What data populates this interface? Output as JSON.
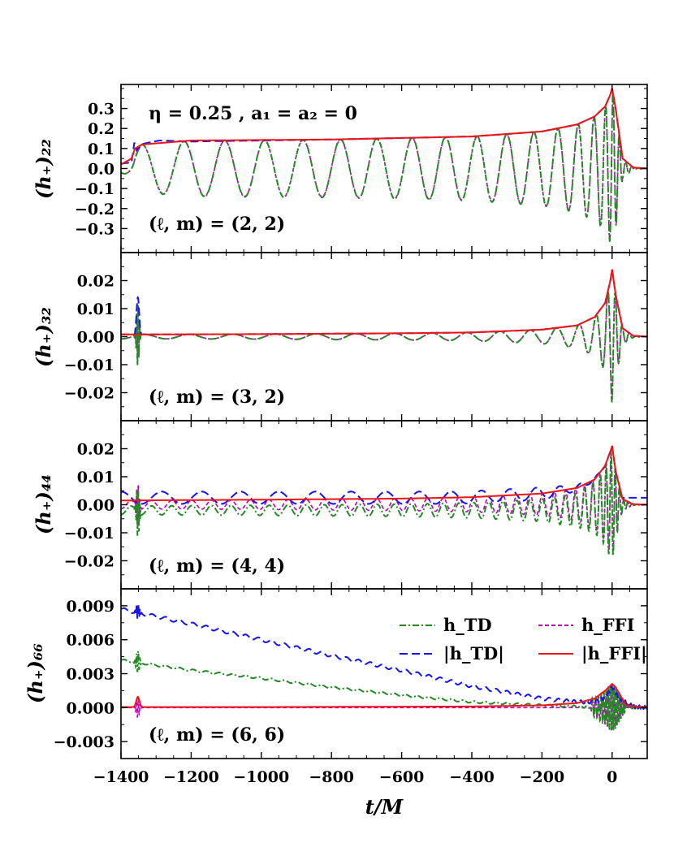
{
  "chart_data": {
    "type": "line",
    "xlabel": "t/M",
    "xlim": [
      -1400,
      100
    ],
    "xticks": [
      -1400,
      -1200,
      -1000,
      -800,
      -600,
      -400,
      -200,
      0
    ],
    "annotation": "η = 0.25 , a₁ = a₂ = 0",
    "legend": {
      "placement": "top-right of bottom panel",
      "entries": [
        {
          "label": "h_TD",
          "style": "dash-dot",
          "color": "#228B22"
        },
        {
          "label": "h_FFI",
          "style": "dotted-dash",
          "color": "#C000C0"
        },
        {
          "label": "|h_TD|",
          "style": "dashed",
          "color": "#1515EE"
        },
        {
          "label": "|h_FFI|",
          "style": "solid",
          "color": "#EE1515"
        }
      ]
    },
    "panels": [
      {
        "mode": "(ℓ, m) = (2, 2)",
        "ylabel": "(h₊)₂₂",
        "ylim": [
          -0.42,
          0.42
        ],
        "yticks": [
          0.3,
          0.2,
          0.1,
          0.0,
          -0.1,
          -0.2,
          -0.3
        ],
        "ytick_labels": [
          "0.3",
          "0.2",
          "0.1",
          "0.0",
          "−0.1",
          "−0.2",
          "−0.3"
        ],
        "amp_profile": {
          "t": [
            -1400,
            -1370,
            -1360,
            -1340,
            -1200,
            -800,
            -400,
            -200,
            -100,
            -50,
            -20,
            -5,
            0,
            10,
            30,
            60,
            100
          ],
          "amp": [
            0.02,
            0.05,
            0.1,
            0.12,
            0.14,
            0.145,
            0.16,
            0.185,
            0.22,
            0.26,
            0.31,
            0.37,
            0.4,
            0.3,
            0.05,
            0.005,
            0.0
          ]
        },
        "td_amp_profile": {
          "t": [
            -1400,
            -1370,
            -1362,
            -1355,
            -1345,
            -1320,
            -1290,
            -1200,
            -800,
            -400,
            -200,
            -100,
            -50,
            -20,
            -5,
            0,
            10,
            30,
            60,
            100
          ],
          "amp": [
            0.025,
            0.03,
            0.13,
            0.09,
            0.12,
            0.13,
            0.14,
            0.135,
            0.145,
            0.16,
            0.185,
            0.22,
            0.26,
            0.31,
            0.37,
            0.4,
            0.3,
            0.05,
            0.005,
            0.0
          ]
        },
        "osc_offset": 0.0,
        "periods": {
          "t": [
            -1300,
            -1000,
            -600,
            -300,
            -150,
            -50,
            0
          ],
          "p": [
            120,
            112,
            100,
            82,
            64,
            40,
            18
          ]
        }
      },
      {
        "mode": "(ℓ, m) = (3, 2)",
        "ylabel": "(h₊)₃₂",
        "ylim": [
          -0.03,
          0.03
        ],
        "yticks": [
          0.02,
          0.01,
          0.0,
          -0.01,
          -0.02
        ],
        "ytick_labels": [
          "0.02",
          "0.01",
          "0.00",
          "−0.01",
          "−0.02"
        ],
        "amp_profile": {
          "t": [
            -1400,
            -1300,
            -1000,
            -600,
            -400,
            -200,
            -100,
            -50,
            -20,
            -5,
            0,
            10,
            30,
            60,
            100
          ],
          "amp": [
            0.0008,
            0.0008,
            0.0009,
            0.0012,
            0.0015,
            0.0025,
            0.004,
            0.007,
            0.012,
            0.02,
            0.024,
            0.015,
            0.003,
            0.0003,
            0.0
          ]
        },
        "osc_offset": 0.0,
        "spike": {
          "t": -1352,
          "height": 0.014
        },
        "periods": {
          "t": [
            -1300,
            -1000,
            -600,
            -300,
            -150,
            -50,
            0
          ],
          "p": [
            130,
            120,
            108,
            90,
            70,
            44,
            20
          ]
        }
      },
      {
        "mode": "(ℓ, m) = (4, 4)",
        "ylabel": "(h₊)₄₄",
        "ylim": [
          -0.03,
          0.03
        ],
        "yticks": [
          0.02,
          0.01,
          0.0,
          -0.01,
          -0.02
        ],
        "ytick_labels": [
          "0.02",
          "0.01",
          "0.00",
          "−0.01",
          "−0.02"
        ],
        "amp_profile": {
          "t": [
            -1400,
            -1300,
            -1000,
            -600,
            -400,
            -200,
            -100,
            -50,
            -20,
            -5,
            0,
            10,
            30,
            60,
            100
          ],
          "amp": [
            0.0015,
            0.0016,
            0.0018,
            0.0022,
            0.0027,
            0.004,
            0.006,
            0.009,
            0.014,
            0.019,
            0.021,
            0.012,
            0.002,
            0.0002,
            0.0
          ]
        },
        "osc_offset": -0.002,
        "spike": {
          "t": -1352,
          "height": 0.011
        },
        "periods": {
          "t": [
            -1300,
            -1000,
            -600,
            -300,
            -150,
            -50,
            0
          ],
          "p": [
            58,
            54,
            48,
            40,
            32,
            22,
            12
          ]
        }
      },
      {
        "mode": "(ℓ, m) = (6, 6)",
        "ylabel": "(h₊)₆₆",
        "ylim": [
          -0.0045,
          0.0105
        ],
        "yticks": [
          0.009,
          0.006,
          0.003,
          0.0,
          -0.003
        ],
        "ytick_labels": [
          "0.009",
          "0.006",
          "0.003",
          "0.000",
          "−0.003"
        ],
        "td_abs": {
          "t": [
            -1400,
            -1200,
            -1000,
            -800,
            -600,
            -400,
            -200,
            -100,
            -50,
            -20,
            0,
            20,
            60,
            100
          ],
          "v": [
            0.0087,
            0.0074,
            0.006,
            0.0046,
            0.0033,
            0.0019,
            0.0008,
            0.0005,
            0.0005,
            0.0009,
            0.0018,
            0.0008,
            0.0001,
            0.0
          ]
        },
        "td_signal": {
          "t": [
            -1400,
            -1200,
            -1000,
            -800,
            -600,
            -400,
            -200,
            -100,
            -50,
            -20,
            0,
            20,
            60,
            100
          ],
          "v": [
            0.0042,
            0.0033,
            0.0026,
            0.0018,
            0.0011,
            0.0005,
            0.0002,
            0.0001,
            0.0,
            0.0,
            0.0,
            0.0,
            0.0,
            0.0
          ]
        },
        "ffi_amp": {
          "t": [
            -1400,
            -1000,
            -400,
            -200,
            -100,
            -50,
            -20,
            0,
            10,
            40,
            100
          ],
          "v": [
            5e-05,
            5e-05,
            0.0001,
            0.0002,
            0.0004,
            0.0008,
            0.0015,
            0.0021,
            0.0018,
            0.0002,
            0.0
          ]
        },
        "spike": {
          "t": -1352,
          "height": 0.0009
        }
      }
    ]
  }
}
